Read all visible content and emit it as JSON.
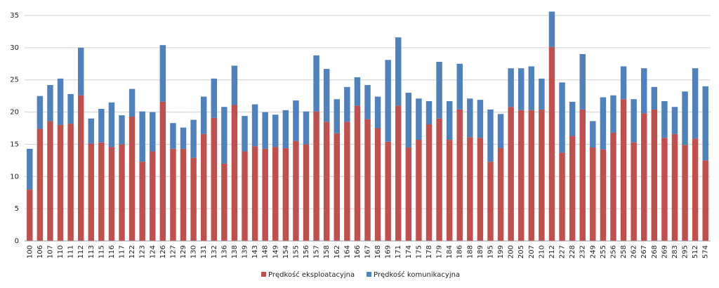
{
  "chart_data": {
    "type": "stacked_bar",
    "categories": [
      "100",
      "106",
      "107",
      "110",
      "111",
      "112",
      "113",
      "115",
      "116",
      "117",
      "122",
      "123",
      "124",
      "126",
      "127",
      "129",
      "130",
      "131",
      "132",
      "136",
      "138",
      "139",
      "143",
      "148",
      "149",
      "154",
      "155",
      "156",
      "157",
      "158",
      "162",
      "164",
      "166",
      "167",
      "168",
      "169",
      "171",
      "174",
      "175",
      "178",
      "179",
      "184",
      "186",
      "188",
      "189",
      "195",
      "199",
      "200",
      "205",
      "207",
      "210",
      "212",
      "227",
      "228",
      "232",
      "249",
      "255",
      "256",
      "258",
      "262",
      "267",
      "268",
      "269",
      "283",
      "295",
      "512",
      "574"
    ],
    "series": [
      {
        "name": "Prędkość eksploatacyjna",
        "color": "#c0504d",
        "values": [
          8,
          17.4,
          18.6,
          18,
          18.2,
          22.6,
          15.1,
          15.3,
          14.6,
          15,
          19.3,
          12.3,
          13.9,
          21.6,
          14.3,
          14.3,
          12.9,
          16.6,
          19.1,
          12,
          21.1,
          13.9,
          14.7,
          14.3,
          14.6,
          14.4,
          15.5,
          15,
          20.1,
          18.5,
          16.7,
          18.5,
          21,
          18.9,
          17.5,
          15.4,
          21,
          14.5,
          15.7,
          18.1,
          19,
          15.7,
          20.4,
          16.1,
          16,
          12.3,
          14.4,
          20.8,
          20.3,
          20.3,
          20.4,
          30.1,
          13.7,
          16.3,
          20.4,
          14.5,
          14.2,
          16.8,
          22,
          15.3,
          19.8,
          20.4,
          16,
          16.6,
          14.9,
          15.9,
          12.5
        ]
      },
      {
        "name": "Prędkość komunikacyjna",
        "color": "#4f81bd",
        "values": [
          6.3,
          5.1,
          5.6,
          7.2,
          4.6,
          7.4,
          3.9,
          5.2,
          6.9,
          4.5,
          4.3,
          7.8,
          6.1,
          8.8,
          4.0,
          3.3,
          5.9,
          5.8,
          6.1,
          8.8,
          6.1,
          5.5,
          6.5,
          5.7,
          5.0,
          5.9,
          6.3,
          5.1,
          8.7,
          8.2,
          5.3,
          5.4,
          4.4,
          5.3,
          4.9,
          12.7,
          10.6,
          8.5,
          6.4,
          3.6,
          8.8,
          6.0,
          7.1,
          6.0,
          5.9,
          8.1,
          5.3,
          6.0,
          6.5,
          6.8,
          4.8,
          5.5,
          10.9,
          5.3,
          8.6,
          4.1,
          8.1,
          5.8,
          5.1,
          6.7,
          7.0,
          3.5,
          5.7,
          4.2,
          8.3,
          10.9,
          11.5
        ]
      }
    ],
    "ylim": [
      0,
      35
    ],
    "yticks": [
      0,
      5,
      10,
      15,
      20,
      25,
      30,
      35
    ],
    "grid": true,
    "legend": "bottom"
  }
}
